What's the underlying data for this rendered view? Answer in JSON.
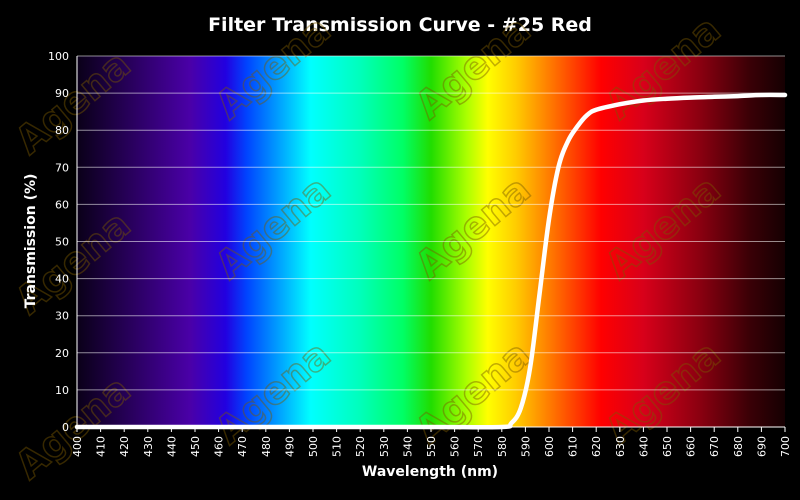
{
  "chart_data": {
    "type": "line",
    "title": "Filter Transmission Curve - #25 Red",
    "xlabel": "Wavelength (nm)",
    "ylabel": "Transmission (%)",
    "xlim": [
      400,
      700
    ],
    "ylim": [
      0,
      100
    ],
    "x_ticks": [
      400,
      410,
      420,
      430,
      440,
      450,
      460,
      470,
      480,
      490,
      500,
      510,
      520,
      530,
      540,
      550,
      560,
      570,
      580,
      590,
      600,
      610,
      620,
      630,
      640,
      650,
      660,
      670,
      680,
      690,
      700
    ],
    "y_ticks": [
      0,
      10,
      20,
      30,
      40,
      50,
      60,
      70,
      80,
      90,
      100
    ],
    "grid": true,
    "legend": "none",
    "background": "visible spectrum gradient",
    "watermark": "Agena",
    "series": [
      {
        "color": "#ffffff",
        "x": [
          400,
          450,
          500,
          550,
          580,
          584,
          588,
          592,
          596,
          600,
          604,
          608,
          612,
          616,
          620,
          630,
          640,
          650,
          660,
          670,
          680,
          690,
          700
        ],
        "y": [
          0,
          0,
          0,
          0,
          0,
          1,
          5,
          16,
          36,
          56,
          70,
          77,
          81,
          84,
          85.5,
          87,
          88,
          88.5,
          88.8,
          89,
          89.2,
          89.5,
          89.5
        ]
      }
    ]
  }
}
